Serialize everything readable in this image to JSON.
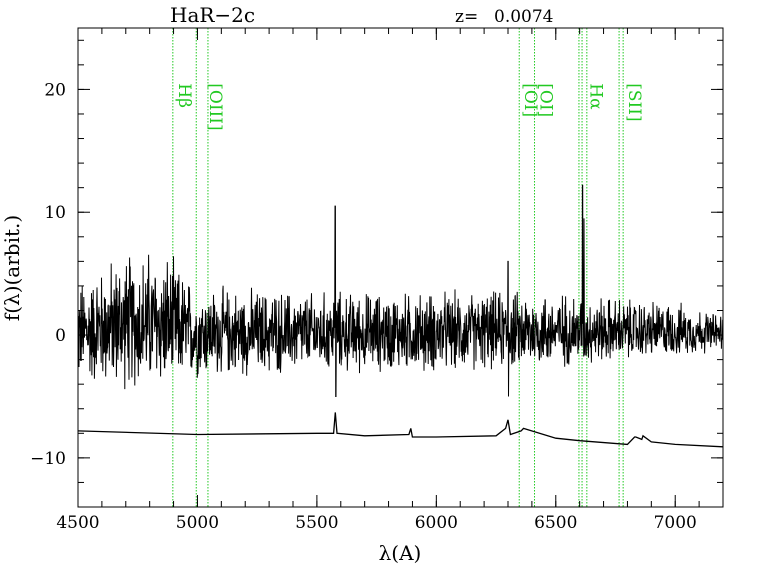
{
  "chart_data": {
    "type": "line",
    "title": "HaR−2c",
    "redshift_label": "z= ",
    "redshift_value": "0.0074",
    "xlabel": "λ(A)",
    "ylabel": "f(λ)(arbit.)",
    "xlim": [
      4500,
      7200
    ],
    "ylim": [
      -14,
      25
    ],
    "xticks": [
      "4500",
      "5000",
      "5500",
      "6000",
      "6500",
      "7000"
    ],
    "yticks": [
      "−10",
      "0",
      "10",
      "20"
    ],
    "grid": false,
    "line_color": "#22c922",
    "spectrum_color": "#000000",
    "emission_lines": [
      {
        "name": "Hβ",
        "x": [
          4897
        ]
      },
      {
        "name": "[OIII]",
        "x": [
          4995,
          5044
        ]
      },
      {
        "name": "[OI]",
        "x": [
          6347
        ]
      },
      {
        "name": "[OI]",
        "x": [
          6411
        ]
      },
      {
        "name": "Hα",
        "x": [
          6597,
          6610,
          6630
        ]
      },
      {
        "name": "[SII]",
        "x": [
          6765,
          6782
        ]
      }
    ],
    "series": [
      {
        "role": "object spectrum (noisy)",
        "baseline": 0,
        "noise_amplitude": 3.0,
        "features": [
          {
            "x": 5577,
            "peak": 10.5,
            "dip": -5
          },
          {
            "x": 6300,
            "peak": 6,
            "dip": -5
          },
          {
            "x": 6612,
            "peak": 12.2,
            "dip": -1
          },
          {
            "x": 6618,
            "peak": 9.5,
            "dip": 0
          }
        ],
        "x_points": [
          4500,
          4700,
          4850,
          5000,
          5500,
          6000,
          6500,
          7000,
          7200
        ],
        "envelope_max": [
          5,
          7.8,
          7.8,
          4.5,
          4,
          4,
          4,
          3,
          2
        ],
        "envelope_min": [
          -4.5,
          -5,
          -5,
          -4,
          -3.5,
          -3.5,
          -3,
          -2,
          -1.5
        ]
      },
      {
        "role": "sky spectrum (offset)",
        "x": [
          4500,
          5000,
          5500,
          5570,
          5577,
          5584,
          5700,
          5885,
          5893,
          5900,
          6000,
          6250,
          6290,
          6300,
          6310,
          6355,
          6365,
          6500,
          6600,
          6800,
          6830,
          6835,
          6860,
          6865,
          6900,
          7000,
          7200
        ],
        "y": [
          -7.8,
          -8.1,
          -8.0,
          -8.0,
          -6.3,
          -8.0,
          -8.2,
          -8.1,
          -7.6,
          -8.3,
          -8.3,
          -8.2,
          -7.6,
          -6.9,
          -8.1,
          -7.8,
          -7.6,
          -8.4,
          -8.6,
          -8.9,
          -8.3,
          -8.3,
          -8.5,
          -8.2,
          -8.7,
          -8.9,
          -9.1
        ]
      }
    ]
  }
}
